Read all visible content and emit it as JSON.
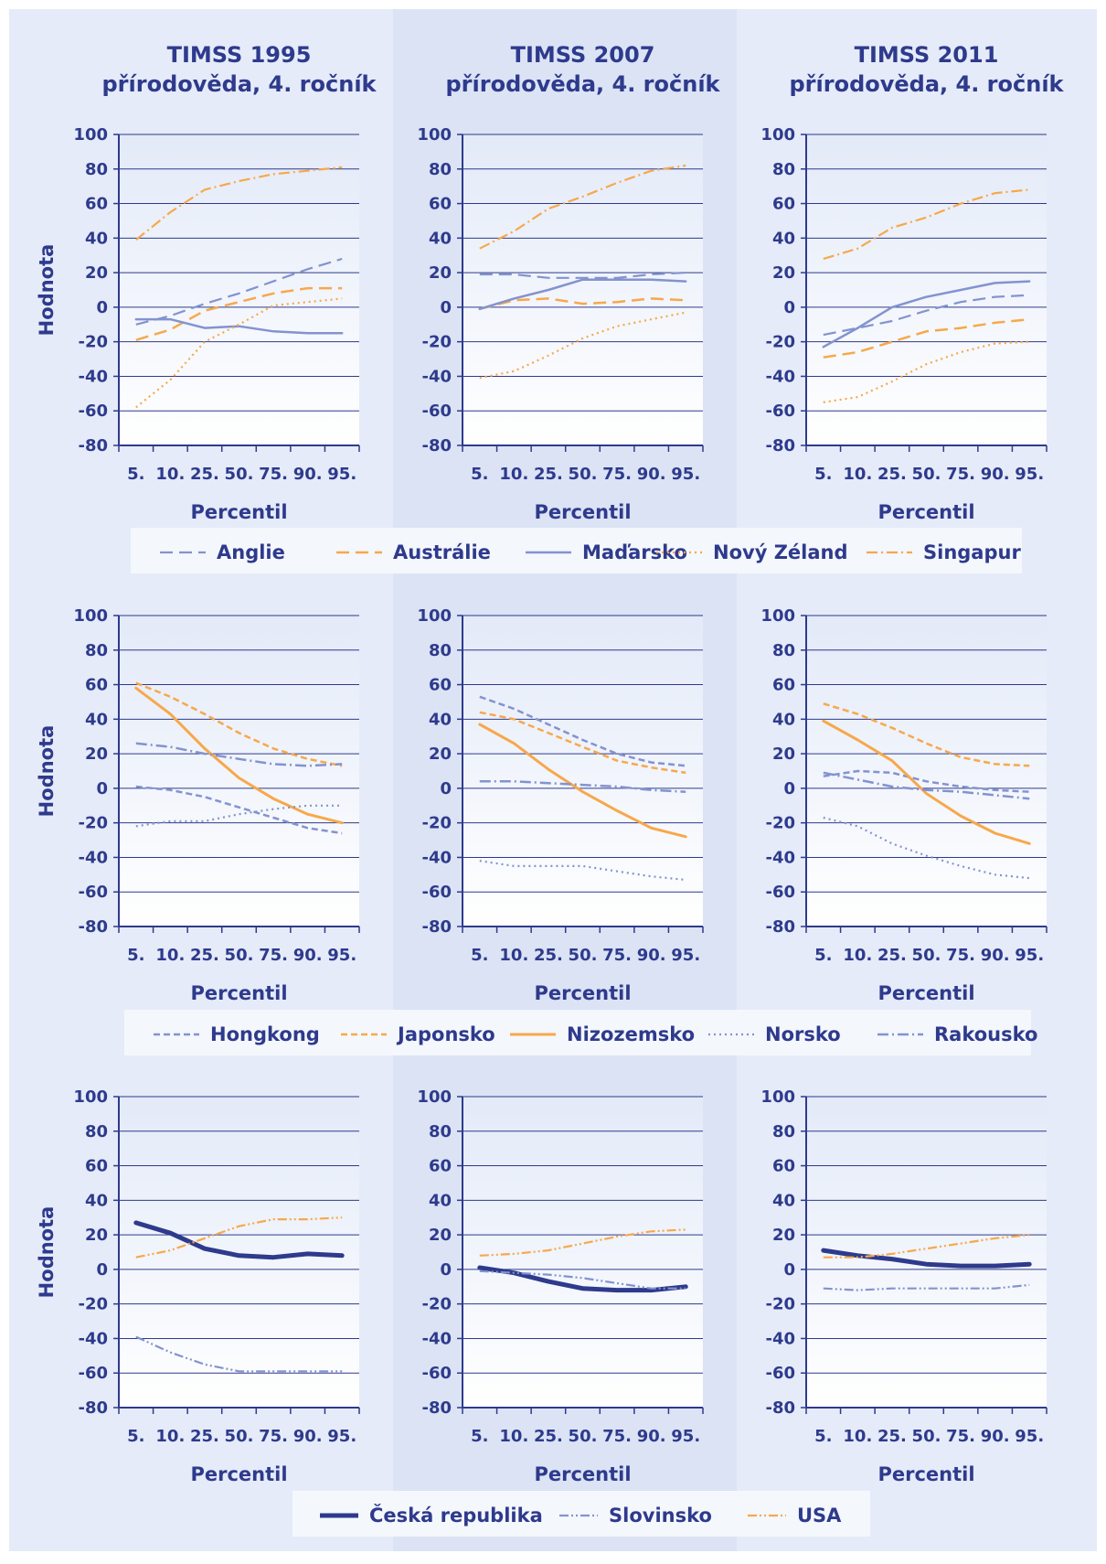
{
  "colors": {
    "navy": "#2e3a8c",
    "blue": "#8393cf",
    "orange": "#f7a84a",
    "bg_light": "#e5ebf8",
    "bg_mid": "#dbe3f5"
  },
  "chart_data": [
    {
      "type": "line",
      "title": [
        "TIMSS 1995",
        "přírodověda, 4. ročník"
      ],
      "xlabel": "Percentil",
      "ylabel": "Hodnota",
      "categories": [
        "5.",
        "10.",
        "25.",
        "50.",
        "75.",
        "90.",
        "95."
      ],
      "ylim": [
        -80,
        100
      ],
      "yticks": [
        100,
        80,
        60,
        40,
        20,
        0,
        -20,
        -40,
        -60,
        -80
      ],
      "grid": true,
      "series": [
        {
          "name": "Anglie",
          "values": [
            -10,
            -5,
            2,
            8,
            15,
            22,
            28
          ]
        },
        {
          "name": "Austrálie",
          "values": [
            -19,
            -13,
            -2,
            3,
            8,
            11,
            11
          ]
        },
        {
          "name": "Maďarsko",
          "values": [
            -7,
            -7,
            -12,
            -11,
            -14,
            -15,
            -15
          ]
        },
        {
          "name": "Nový Zéland",
          "values": [
            -58,
            -42,
            -20,
            -10,
            1,
            3,
            5
          ]
        },
        {
          "name": "Singapur",
          "values": [
            39,
            55,
            68,
            73,
            77,
            79,
            81
          ]
        }
      ]
    },
    {
      "type": "line",
      "title": [
        "TIMSS 2007",
        "přírodověda, 4. ročník"
      ],
      "xlabel": "Percentil",
      "categories": [
        "5.",
        "10.",
        "25.",
        "50.",
        "75.",
        "90.",
        "95."
      ],
      "ylim": [
        -80,
        100
      ],
      "yticks": [
        100,
        80,
        60,
        40,
        20,
        0,
        -20,
        -40,
        -60,
        -80
      ],
      "grid": true,
      "series": [
        {
          "name": "Anglie",
          "values": [
            19,
            19,
            17,
            17,
            17,
            19,
            20
          ]
        },
        {
          "name": "Austrálie",
          "values": [
            -1,
            4,
            5,
            2,
            3,
            5,
            4
          ]
        },
        {
          "name": "Maďarsko",
          "values": [
            -1,
            5,
            10,
            16,
            16,
            16,
            15
          ]
        },
        {
          "name": "Nový Zéland",
          "values": [
            -41,
            -37,
            -28,
            -18,
            -11,
            -7,
            -3
          ]
        },
        {
          "name": "Singapur",
          "values": [
            34,
            44,
            57,
            64,
            72,
            79,
            82
          ]
        }
      ]
    },
    {
      "type": "line",
      "title": [
        "TIMSS 2011",
        "přírodověda, 4. ročník"
      ],
      "xlabel": "Percentil",
      "categories": [
        "5.",
        "10.",
        "25.",
        "50.",
        "75.",
        "90.",
        "95."
      ],
      "ylim": [
        -80,
        100
      ],
      "yticks": [
        100,
        80,
        60,
        40,
        20,
        0,
        -20,
        -40,
        -60,
        -80
      ],
      "grid": true,
      "series": [
        {
          "name": "Anglie",
          "values": [
            -16,
            -12,
            -8,
            -2,
            3,
            6,
            7
          ]
        },
        {
          "name": "Austrálie",
          "values": [
            -29,
            -26,
            -20,
            -14,
            -12,
            -9,
            -7
          ]
        },
        {
          "name": "Maďarsko",
          "values": [
            -23,
            -12,
            0,
            6,
            10,
            14,
            15
          ]
        },
        {
          "name": "Nový Zéland",
          "values": [
            -55,
            -52,
            -43,
            -33,
            -26,
            -21,
            -20
          ]
        },
        {
          "name": "Singapur",
          "values": [
            28,
            34,
            46,
            52,
            60,
            66,
            68
          ]
        }
      ]
    },
    {
      "type": "line",
      "xlabel": "Percentil",
      "ylabel": "Hodnota",
      "categories": [
        "5.",
        "10.",
        "25.",
        "50.",
        "75.",
        "90.",
        "95."
      ],
      "ylim": [
        -80,
        100
      ],
      "yticks": [
        100,
        80,
        60,
        40,
        20,
        0,
        -20,
        -40,
        -60,
        -80
      ],
      "grid": true,
      "series": [
        {
          "name": "Hongkong",
          "values": [
            1,
            -1,
            -5,
            -11,
            -17,
            -23,
            -26
          ]
        },
        {
          "name": "Japonsko",
          "values": [
            61,
            53,
            43,
            32,
            23,
            17,
            13
          ]
        },
        {
          "name": "Nizozemsko",
          "values": [
            58,
            43,
            23,
            6,
            -6,
            -15,
            -20
          ]
        },
        {
          "name": "Norsko",
          "values": [
            -22,
            -19,
            -19,
            -15,
            -12,
            -10,
            -10
          ]
        },
        {
          "name": "Rakousko",
          "values": [
            26,
            24,
            20,
            17,
            14,
            13,
            14
          ]
        }
      ]
    },
    {
      "type": "line",
      "xlabel": "Percentil",
      "categories": [
        "5.",
        "10.",
        "25.",
        "50.",
        "75.",
        "90.",
        "95."
      ],
      "ylim": [
        -80,
        100
      ],
      "yticks": [
        100,
        80,
        60,
        40,
        20,
        0,
        -20,
        -40,
        -60,
        -80
      ],
      "grid": true,
      "series": [
        {
          "name": "Hongkong",
          "values": [
            53,
            46,
            37,
            28,
            20,
            15,
            13
          ]
        },
        {
          "name": "Japonsko",
          "values": [
            44,
            40,
            32,
            24,
            16,
            12,
            9
          ]
        },
        {
          "name": "Nizozemsko",
          "values": [
            37,
            26,
            11,
            -2,
            -13,
            -23,
            -28
          ]
        },
        {
          "name": "Norsko",
          "values": [
            -42,
            -45,
            -45,
            -45,
            -48,
            -51,
            -53
          ]
        },
        {
          "name": "Rakousko",
          "values": [
            4,
            4,
            3,
            2,
            1,
            -1,
            -2
          ]
        }
      ]
    },
    {
      "type": "line",
      "xlabel": "Percentil",
      "categories": [
        "5.",
        "10.",
        "25.",
        "50.",
        "75.",
        "90.",
        "95."
      ],
      "ylim": [
        -80,
        100
      ],
      "yticks": [
        100,
        80,
        60,
        40,
        20,
        0,
        -20,
        -40,
        -60,
        -80
      ],
      "grid": true,
      "series": [
        {
          "name": "Hongkong",
          "values": [
            7,
            10,
            9,
            4,
            1,
            -1,
            -2
          ]
        },
        {
          "name": "Japonsko",
          "values": [
            49,
            43,
            35,
            26,
            18,
            14,
            13
          ]
        },
        {
          "name": "Nizozemsko",
          "values": [
            39,
            28,
            16,
            -3,
            -16,
            -26,
            -32
          ]
        },
        {
          "name": "Norsko",
          "values": [
            -17,
            -22,
            -32,
            -39,
            -45,
            -50,
            -52
          ]
        },
        {
          "name": "Rakousko",
          "values": [
            9,
            5,
            1,
            -1,
            -2,
            -4,
            -6
          ]
        }
      ]
    },
    {
      "type": "line",
      "xlabel": "Percentil",
      "ylabel": "Hodnota",
      "categories": [
        "5.",
        "10.",
        "25.",
        "50.",
        "75.",
        "90.",
        "95."
      ],
      "ylim": [
        -80,
        100
      ],
      "yticks": [
        100,
        80,
        60,
        40,
        20,
        0,
        -20,
        -40,
        -60,
        -80
      ],
      "grid": true,
      "series": [
        {
          "name": "Česká republika",
          "values": [
            27,
            21,
            12,
            8,
            7,
            9,
            8
          ]
        },
        {
          "name": "Slovinsko",
          "values": [
            -39,
            -48,
            -55,
            -59,
            -59,
            -59,
            -59
          ]
        },
        {
          "name": "USA",
          "values": [
            7,
            11,
            18,
            25,
            29,
            29,
            30
          ]
        }
      ]
    },
    {
      "type": "line",
      "xlabel": "Percentil",
      "categories": [
        "5.",
        "10.",
        "25.",
        "50.",
        "75.",
        "90.",
        "95."
      ],
      "ylim": [
        -80,
        100
      ],
      "yticks": [
        100,
        80,
        60,
        40,
        20,
        0,
        -20,
        -40,
        -60,
        -80
      ],
      "grid": true,
      "series": [
        {
          "name": "Česká republika",
          "values": [
            1,
            -2,
            -7,
            -11,
            -12,
            -12,
            -10
          ]
        },
        {
          "name": "Slovinsko",
          "values": [
            -1,
            -2,
            -3,
            -5,
            -8,
            -11,
            -11
          ]
        },
        {
          "name": "USA",
          "values": [
            8,
            9,
            11,
            15,
            19,
            22,
            23
          ]
        }
      ]
    },
    {
      "type": "line",
      "xlabel": "Percentil",
      "categories": [
        "5.",
        "10.",
        "25.",
        "50.",
        "75.",
        "90.",
        "95."
      ],
      "ylim": [
        -80,
        100
      ],
      "yticks": [
        100,
        80,
        60,
        40,
        20,
        0,
        -20,
        -40,
        -60,
        -80
      ],
      "grid": true,
      "series": [
        {
          "name": "Česká republika",
          "values": [
            11,
            8,
            6,
            3,
            2,
            2,
            3
          ]
        },
        {
          "name": "Slovinsko",
          "values": [
            -11,
            -12,
            -11,
            -11,
            -11,
            -11,
            -9
          ]
        },
        {
          "name": "USA",
          "values": [
            7,
            7,
            9,
            12,
            15,
            18,
            20
          ]
        }
      ]
    }
  ],
  "legends": [
    {
      "items": [
        {
          "name": "Anglie",
          "style": "dashed-blue"
        },
        {
          "name": "Austrálie",
          "style": "dashed-orange"
        },
        {
          "name": "Maďarsko",
          "style": "solid-blue"
        },
        {
          "name": "Nový Zéland",
          "style": "dotted-orange"
        },
        {
          "name": "Singapur",
          "style": "dashdot-orange"
        }
      ]
    },
    {
      "items": [
        {
          "name": "Hongkong",
          "style": "shortdash-blue"
        },
        {
          "name": "Japonsko",
          "style": "shortdash-orange"
        },
        {
          "name": "Nizozemsko",
          "style": "solid-orange"
        },
        {
          "name": "Norsko",
          "style": "dotted-blue"
        },
        {
          "name": "Rakousko",
          "style": "dashdot-blue"
        }
      ]
    },
    {
      "items": [
        {
          "name": "Česká republika",
          "style": "thick-navy"
        },
        {
          "name": "Slovinsko",
          "style": "dashdotdot-blue"
        },
        {
          "name": "USA",
          "style": "dashdotdot-orange"
        }
      ]
    }
  ]
}
